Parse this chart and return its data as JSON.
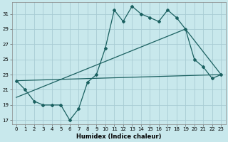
{
  "xlabel": "Humidex (Indice chaleur)",
  "bg_color": "#c8e8ec",
  "grid_color": "#a8ccd4",
  "line_color": "#1a6060",
  "xlim": [
    -0.5,
    23.5
  ],
  "ylim": [
    16.5,
    32.5
  ],
  "xticks": [
    0,
    1,
    2,
    3,
    4,
    5,
    6,
    7,
    8,
    9,
    10,
    11,
    12,
    13,
    14,
    15,
    16,
    17,
    18,
    19,
    20,
    21,
    22,
    23
  ],
  "yticks": [
    17,
    19,
    21,
    23,
    25,
    27,
    29,
    31
  ],
  "line1_x": [
    0,
    1,
    2,
    3,
    4,
    5,
    6,
    7,
    8,
    9,
    10,
    11,
    12,
    13,
    14,
    15,
    16,
    17,
    18,
    19,
    20,
    21,
    22,
    23
  ],
  "line1_y": [
    22.2,
    21.0,
    19.5,
    19.0,
    19.0,
    19.0,
    17.0,
    18.5,
    22.0,
    23.0,
    26.5,
    31.5,
    30.0,
    32.0,
    31.0,
    30.5,
    30.0,
    31.5,
    30.5,
    29.0,
    25.0,
    24.0,
    22.5,
    23.0
  ],
  "line2_x": [
    0,
    23
  ],
  "line2_y": [
    22.2,
    23.0
  ],
  "line3_x": [
    0,
    19,
    23
  ],
  "line3_y": [
    20.0,
    29.0,
    23.0
  ],
  "markersize": 2.0,
  "linewidth": 0.9,
  "tick_fontsize": 5.0,
  "xlabel_fontsize": 6.0
}
